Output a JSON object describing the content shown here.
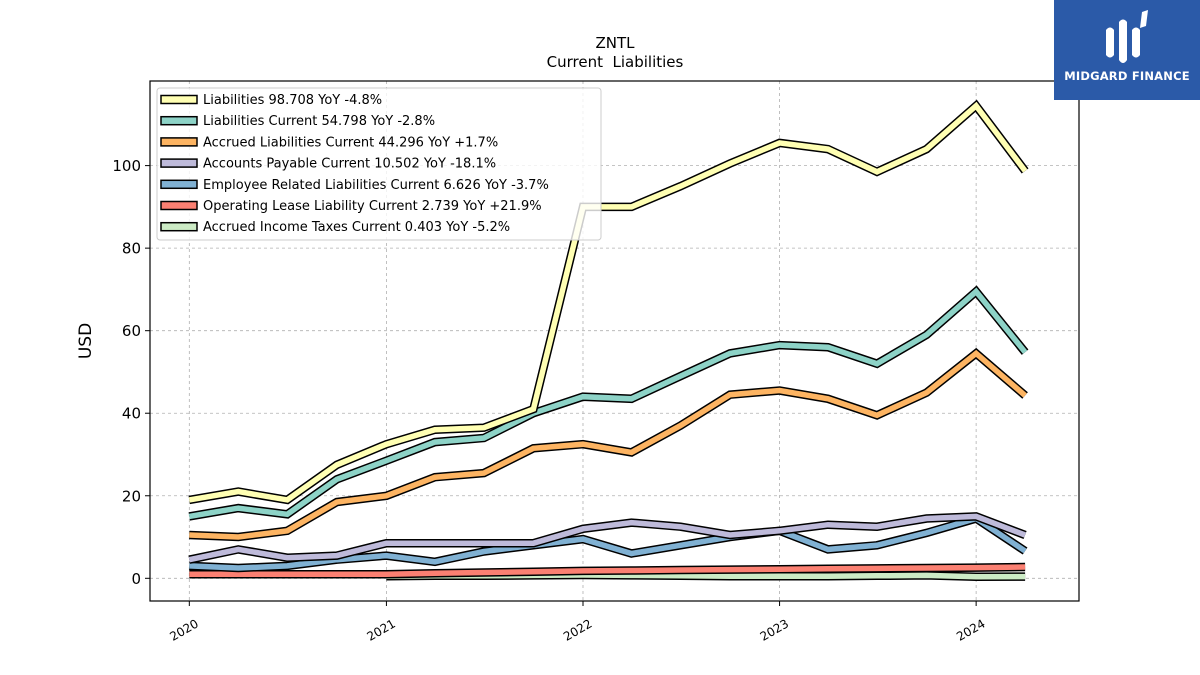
{
  "brand": {
    "name": "MIDGARD FINANCE",
    "logo_color": "#2b5aa8"
  },
  "chart_data": {
    "type": "line",
    "title": "ZNTL",
    "subtitle": "Current  Liabilities",
    "xlabel": "",
    "ylabel": "USD",
    "xlim": [
      "2019-10-20",
      "2024-07-10"
    ],
    "ylim": [
      -5.5,
      120.5
    ],
    "yticks": [
      0,
      20,
      40,
      60,
      80,
      100
    ],
    "xticks": [
      {
        "date": "2020-01-01",
        "label": "2020"
      },
      {
        "date": "2021-01-01",
        "label": "2021"
      },
      {
        "date": "2022-01-01",
        "label": "2022"
      },
      {
        "date": "2023-01-01",
        "label": "2023"
      },
      {
        "date": "2024-01-01",
        "label": "2024"
      }
    ],
    "grid": true,
    "legend_position": "top-left",
    "series": [
      {
        "name": "Liabilities",
        "legend": "Liabilities  98.708 YoY -4.8%",
        "color": "#ffffb3",
        "points": [
          [
            "2020-01-01",
            19
          ],
          [
            "2020-04-01",
            21
          ],
          [
            "2020-07-01",
            19
          ],
          [
            "2020-10-01",
            27.5
          ],
          [
            "2021-01-01",
            32.5
          ],
          [
            "2021-04-01",
            36
          ],
          [
            "2021-07-01",
            36.5
          ],
          [
            "2021-10-01",
            41
          ],
          [
            "2022-01-01",
            90
          ],
          [
            "2022-04-01",
            90
          ],
          [
            "2022-07-01",
            95
          ],
          [
            "2022-10-01",
            100.5
          ],
          [
            "2023-01-01",
            105.5
          ],
          [
            "2023-04-01",
            104
          ],
          [
            "2023-07-01",
            98.5
          ],
          [
            "2023-10-01",
            104
          ],
          [
            "2024-01-01",
            114.5
          ],
          [
            "2024-04-01",
            98.708
          ]
        ]
      },
      {
        "name": "Liabilities Current",
        "legend": "Liabilities Current  54.798 YoY -2.8%",
        "color": "#8dd3c7",
        "points": [
          [
            "2020-01-01",
            15
          ],
          [
            "2020-04-01",
            17
          ],
          [
            "2020-07-01",
            15.5
          ],
          [
            "2020-10-01",
            24
          ],
          [
            "2021-01-01",
            28.5
          ],
          [
            "2021-04-01",
            33
          ],
          [
            "2021-07-01",
            34
          ],
          [
            "2021-10-01",
            40
          ],
          [
            "2022-01-01",
            44
          ],
          [
            "2022-04-01",
            43.5
          ],
          [
            "2022-07-01",
            49
          ],
          [
            "2022-10-01",
            54.5
          ],
          [
            "2023-01-01",
            56.5
          ],
          [
            "2023-04-01",
            56
          ],
          [
            "2023-07-01",
            52
          ],
          [
            "2023-10-01",
            59
          ],
          [
            "2024-01-01",
            69.5
          ],
          [
            "2024-04-01",
            54.798
          ]
        ]
      },
      {
        "name": "Accrued Liabilities Current",
        "legend": "Accrued Liabilities Current  44.296 YoY +1.7%",
        "color": "#fdb462",
        "points": [
          [
            "2020-01-01",
            10.5
          ],
          [
            "2020-04-01",
            10
          ],
          [
            "2020-07-01",
            11.5
          ],
          [
            "2020-10-01",
            18.5
          ],
          [
            "2021-01-01",
            20
          ],
          [
            "2021-04-01",
            24.5
          ],
          [
            "2021-07-01",
            25.5
          ],
          [
            "2021-10-01",
            31.5
          ],
          [
            "2022-01-01",
            32.5
          ],
          [
            "2022-04-01",
            30.5
          ],
          [
            "2022-07-01",
            37
          ],
          [
            "2022-10-01",
            44.5
          ],
          [
            "2023-01-01",
            45.5
          ],
          [
            "2023-04-01",
            43.5
          ],
          [
            "2023-07-01",
            39.5
          ],
          [
            "2023-10-01",
            45
          ],
          [
            "2024-01-01",
            54.5
          ],
          [
            "2024-04-01",
            44.296
          ]
        ]
      },
      {
        "name": "Accounts Payable Current",
        "legend": "Accounts Payable Current  10.502 YoY -18.1%",
        "color": "#bebada",
        "points": [
          [
            "2020-01-01",
            4.5
          ],
          [
            "2020-04-01",
            7
          ],
          [
            "2020-07-01",
            5
          ],
          [
            "2020-10-01",
            5.5
          ],
          [
            "2021-01-01",
            8.5
          ],
          [
            "2021-04-01",
            8.5
          ],
          [
            "2021-07-01",
            8.5
          ],
          [
            "2021-10-01",
            8.5
          ],
          [
            "2022-01-01",
            12
          ],
          [
            "2022-04-01",
            13.5
          ],
          [
            "2022-07-01",
            12.5
          ],
          [
            "2022-10-01",
            10.5
          ],
          [
            "2023-01-01",
            11.5
          ],
          [
            "2023-04-01",
            13
          ],
          [
            "2023-07-01",
            12.5
          ],
          [
            "2023-10-01",
            14.5
          ],
          [
            "2024-01-01",
            15
          ],
          [
            "2024-04-01",
            10.502
          ]
        ]
      },
      {
        "name": "Employee Related Liabilities Current",
        "legend": "Employee Related Liabilities Current  6.626 YoY -3.7%",
        "color": "#80b1d3",
        "points": [
          [
            "2020-01-01",
            3
          ],
          [
            "2020-04-01",
            2.5
          ],
          [
            "2020-07-01",
            3
          ],
          [
            "2020-10-01",
            4.5
          ],
          [
            "2021-01-01",
            5.5
          ],
          [
            "2021-04-01",
            4
          ],
          [
            "2021-07-01",
            6.5
          ],
          [
            "2021-10-01",
            8
          ],
          [
            "2022-01-01",
            9.5
          ],
          [
            "2022-04-01",
            6
          ],
          [
            "2022-07-01",
            8
          ],
          [
            "2022-10-01",
            10
          ],
          [
            "2023-01-01",
            11.5
          ],
          [
            "2023-04-01",
            7
          ],
          [
            "2023-07-01",
            8
          ],
          [
            "2023-10-01",
            11
          ],
          [
            "2024-01-01",
            14.5
          ],
          [
            "2024-04-01",
            6.626
          ]
        ]
      },
      {
        "name": "Operating Lease Liability Current",
        "legend": "Operating Lease Liability Current  2.739 YoY +21.9%",
        "color": "#fb8072",
        "points": [
          [
            "2020-01-01",
            1
          ],
          [
            "2020-04-01",
            1
          ],
          [
            "2020-07-01",
            1
          ],
          [
            "2020-10-01",
            1
          ],
          [
            "2021-01-01",
            1
          ],
          [
            "2021-04-01",
            1.2
          ],
          [
            "2021-07-01",
            1.4
          ],
          [
            "2021-10-01",
            1.6
          ],
          [
            "2022-01-01",
            1.8
          ],
          [
            "2022-04-01",
            1.9
          ],
          [
            "2022-07-01",
            2
          ],
          [
            "2022-10-01",
            2.1
          ],
          [
            "2023-01-01",
            2.2
          ],
          [
            "2023-04-01",
            2.3
          ],
          [
            "2023-07-01",
            2.4
          ],
          [
            "2023-10-01",
            2.5
          ],
          [
            "2024-01-01",
            2.6
          ],
          [
            "2024-04-01",
            2.739
          ]
        ]
      },
      {
        "name": "Accrued Income Taxes Current",
        "legend": "Accrued Income Taxes Current  0.403 YoY -5.2%",
        "color": "#ccebc5",
        "points": [
          [
            "2021-01-01",
            0.5
          ],
          [
            "2021-04-01",
            0.6
          ],
          [
            "2021-07-01",
            0.6
          ],
          [
            "2021-10-01",
            0.7
          ],
          [
            "2022-01-01",
            0.8
          ],
          [
            "2022-04-01",
            0.7
          ],
          [
            "2022-07-01",
            0.6
          ],
          [
            "2022-10-01",
            0.5
          ],
          [
            "2023-01-01",
            0.5
          ],
          [
            "2023-04-01",
            0.5
          ],
          [
            "2023-07-01",
            0.6
          ],
          [
            "2023-10-01",
            0.7
          ],
          [
            "2024-01-01",
            0.4
          ],
          [
            "2024-04-01",
            0.403
          ]
        ]
      }
    ]
  }
}
